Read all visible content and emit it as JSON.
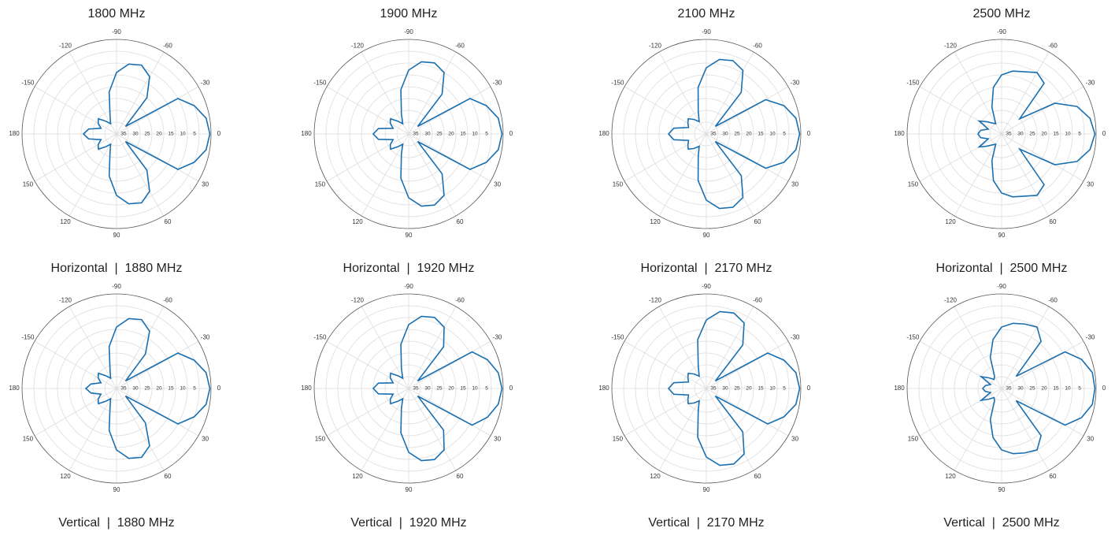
{
  "column_headers": [
    "1800 MHz",
    "1900 MHz",
    "2100 MHz",
    "2500 MHz"
  ],
  "chart_data": [
    {
      "type": "polar",
      "caption": "Horizontal  |  1880 MHz",
      "color": "#1a6fb0",
      "rlim": [
        40,
        0
      ],
      "rticks": [
        35,
        30,
        25,
        20,
        15,
        10,
        5
      ],
      "thetaticks": [
        -150,
        -120,
        -90,
        -60,
        -30,
        0,
        30,
        60,
        90,
        120,
        150,
        180
      ],
      "x": [
        -180,
        -170,
        -160,
        -150,
        -140,
        -130,
        -120,
        -110,
        -100,
        -90,
        -80,
        -70,
        -60,
        -50,
        -40,
        -30,
        -20,
        -10,
        0,
        10,
        20,
        30,
        40,
        50,
        60,
        70,
        80,
        90,
        100,
        110,
        120,
        130,
        140,
        150,
        160,
        170
      ],
      "values": [
        26,
        28,
        33,
        31,
        30,
        33,
        35,
        32,
        22,
        14,
        10,
        9,
        12,
        20,
        35,
        10,
        5,
        1.5,
        0.5,
        1.5,
        5,
        10,
        35,
        20,
        12,
        9,
        10,
        14,
        22,
        32,
        35,
        33,
        30,
        31,
        33,
        28
      ]
    },
    {
      "type": "polar",
      "caption": "Horizontal  |  1920 MHz",
      "color": "#1a6fb0",
      "rlim": [
        40,
        0
      ],
      "rticks": [
        35,
        30,
        25,
        20,
        15,
        10,
        5
      ],
      "thetaticks": [
        -150,
        -120,
        -90,
        -60,
        -30,
        0,
        30,
        60,
        90,
        120,
        150,
        180
      ],
      "x": [
        -180,
        -170,
        -160,
        -150,
        -140,
        -130,
        -120,
        -110,
        -100,
        -90,
        -80,
        -70,
        -60,
        -50,
        -40,
        -30,
        -20,
        -10,
        0,
        10,
        20,
        30,
        40,
        50,
        60,
        70,
        80,
        90,
        100,
        110,
        120,
        130,
        140,
        150,
        160,
        170
      ],
      "values": [
        25,
        27,
        33,
        31,
        30,
        33,
        35,
        31,
        21,
        13,
        9,
        8,
        10,
        18,
        35,
        10,
        5,
        1.5,
        0.5,
        1.5,
        5,
        10,
        35,
        18,
        10,
        8,
        9,
        13,
        21,
        31,
        35,
        33,
        30,
        31,
        33,
        27
      ]
    },
    {
      "type": "polar",
      "caption": "Horizontal  |  2170 MHz",
      "color": "#1a6fb0",
      "rlim": [
        40,
        0
      ],
      "rticks": [
        35,
        30,
        25,
        20,
        15,
        10,
        5
      ],
      "thetaticks": [
        -150,
        -120,
        -90,
        -60,
        -30,
        0,
        30,
        60,
        90,
        120,
        150,
        180
      ],
      "x": [
        -180,
        -170,
        -160,
        -150,
        -140,
        -130,
        -120,
        -110,
        -100,
        -90,
        -80,
        -70,
        -60,
        -50,
        -40,
        -30,
        -20,
        -10,
        0,
        10,
        20,
        30,
        40,
        50,
        60,
        70,
        80,
        90,
        100,
        110,
        120,
        130,
        140,
        150,
        160,
        170
      ],
      "values": [
        24,
        26,
        32,
        31,
        30,
        32,
        34,
        30,
        20,
        12,
        8,
        7,
        9,
        17,
        35,
        11,
        5,
        1.5,
        0.5,
        1.5,
        5,
        11,
        35,
        17,
        9,
        7,
        8,
        12,
        20,
        30,
        34,
        32,
        30,
        31,
        32,
        26
      ]
    },
    {
      "type": "polar",
      "caption": "Horizontal  |  2500 MHz",
      "color": "#1a6fb0",
      "rlim": [
        40,
        0
      ],
      "rticks": [
        35,
        30,
        25,
        20,
        15,
        10,
        5
      ],
      "thetaticks": [
        -150,
        -120,
        -90,
        -60,
        -30,
        0,
        30,
        60,
        90,
        120,
        150,
        180
      ],
      "x": [
        -180,
        -170,
        -160,
        -150,
        -140,
        -130,
        -120,
        -110,
        -100,
        -90,
        -80,
        -70,
        -60,
        -50,
        -40,
        -30,
        -20,
        -10,
        0,
        10,
        20,
        30,
        40,
        50,
        60,
        70,
        80,
        90,
        100,
        110,
        120,
        130,
        140,
        150,
        160,
        170
      ],
      "values": [
        30,
        31,
        34,
        29,
        32,
        34,
        35,
        28,
        20,
        15,
        13,
        12,
        10,
        12,
        30,
        14,
        6,
        2,
        0.5,
        2,
        6,
        14,
        30,
        12,
        10,
        12,
        13,
        15,
        20,
        28,
        35,
        34,
        32,
        29,
        34,
        31
      ]
    },
    {
      "type": "polar",
      "caption": "Vertical  |  1880 MHz",
      "color": "#1a6fb0",
      "rlim": [
        40,
        0
      ],
      "rticks": [
        35,
        30,
        25,
        20,
        15,
        10,
        5
      ],
      "thetaticks": [
        -150,
        -120,
        -90,
        -60,
        -30,
        0,
        30,
        60,
        90,
        120,
        150,
        180
      ],
      "x": [
        -180,
        -170,
        -160,
        -150,
        -140,
        -130,
        -120,
        -110,
        -100,
        -90,
        -80,
        -70,
        -60,
        -50,
        -40,
        -30,
        -20,
        -10,
        0,
        10,
        20,
        30,
        40,
        50,
        60,
        70,
        80,
        90,
        100,
        110,
        120,
        130,
        140,
        150,
        160,
        170
      ],
      "values": [
        27,
        29,
        33,
        31,
        30,
        33,
        35,
        32,
        22,
        14,
        10,
        9,
        12,
        21,
        35,
        10,
        5,
        1.5,
        0.5,
        1.5,
        5,
        10,
        35,
        21,
        12,
        9,
        10,
        14,
        22,
        32,
        35,
        33,
        30,
        31,
        33,
        29
      ]
    },
    {
      "type": "polar",
      "caption": "Vertical  |  1920 MHz",
      "color": "#1a6fb0",
      "rlim": [
        40,
        0
      ],
      "rticks": [
        35,
        30,
        25,
        20,
        15,
        10,
        5
      ],
      "thetaticks": [
        -150,
        -120,
        -90,
        -60,
        -30,
        0,
        30,
        60,
        90,
        120,
        150,
        180
      ],
      "x": [
        -180,
        -170,
        -160,
        -150,
        -140,
        -130,
        -120,
        -110,
        -100,
        -90,
        -80,
        -70,
        -60,
        -50,
        -40,
        -30,
        -20,
        -10,
        0,
        10,
        20,
        30,
        40,
        50,
        60,
        70,
        80,
        90,
        100,
        110,
        120,
        130,
        140,
        150,
        160,
        170
      ],
      "values": [
        25,
        27,
        33,
        31,
        30,
        33,
        35,
        31,
        21,
        13,
        9,
        8,
        10,
        17,
        35,
        9,
        4.5,
        1.5,
        0.5,
        1.5,
        4.5,
        9,
        35,
        17,
        10,
        8,
        9,
        13,
        21,
        31,
        35,
        33,
        30,
        31,
        33,
        27
      ]
    },
    {
      "type": "polar",
      "caption": "Vertical  |  2170 MHz",
      "color": "#1a6fb0",
      "rlim": [
        40,
        0
      ],
      "rticks": [
        35,
        30,
        25,
        20,
        15,
        10,
        5
      ],
      "thetaticks": [
        -150,
        -120,
        -90,
        -60,
        -30,
        0,
        30,
        60,
        90,
        120,
        150,
        180
      ],
      "x": [
        -180,
        -170,
        -160,
        -150,
        -140,
        -130,
        -120,
        -110,
        -100,
        -90,
        -80,
        -70,
        -60,
        -50,
        -40,
        -30,
        -20,
        -10,
        0,
        10,
        20,
        30,
        40,
        50,
        60,
        70,
        80,
        90,
        100,
        110,
        120,
        130,
        140,
        150,
        160,
        170
      ],
      "values": [
        24,
        26,
        32,
        31,
        30,
        32,
        34,
        30,
        19,
        11,
        7,
        6,
        8,
        16,
        35,
        10,
        5,
        1.5,
        0.5,
        1.5,
        5,
        10,
        35,
        16,
        8,
        6,
        7,
        11,
        19,
        30,
        34,
        32,
        30,
        31,
        32,
        26
      ]
    },
    {
      "type": "polar",
      "caption": "Vertical  |  2500 MHz",
      "color": "#1a6fb0",
      "rlim": [
        40,
        0
      ],
      "rticks": [
        35,
        30,
        25,
        20,
        15,
        10,
        5
      ],
      "thetaticks": [
        -150,
        -120,
        -90,
        -60,
        -30,
        0,
        30,
        60,
        90,
        120,
        150,
        180
      ],
      "x": [
        -180,
        -170,
        -160,
        -150,
        -140,
        -130,
        -120,
        -110,
        -100,
        -90,
        -80,
        -70,
        -60,
        -50,
        -40,
        -30,
        -20,
        -10,
        0,
        10,
        20,
        30,
        40,
        50,
        60,
        70,
        80,
        90,
        100,
        110,
        120,
        130,
        140,
        150,
        160,
        170
      ],
      "values": [
        32,
        33,
        35,
        30,
        33,
        35,
        34,
        26,
        19,
        14,
        12,
        11,
        10,
        14,
        32,
        9,
        4,
        1,
        0.5,
        1,
        4,
        9,
        32,
        14,
        10,
        11,
        12,
        14,
        19,
        26,
        34,
        35,
        33,
        30,
        35,
        33
      ]
    }
  ]
}
